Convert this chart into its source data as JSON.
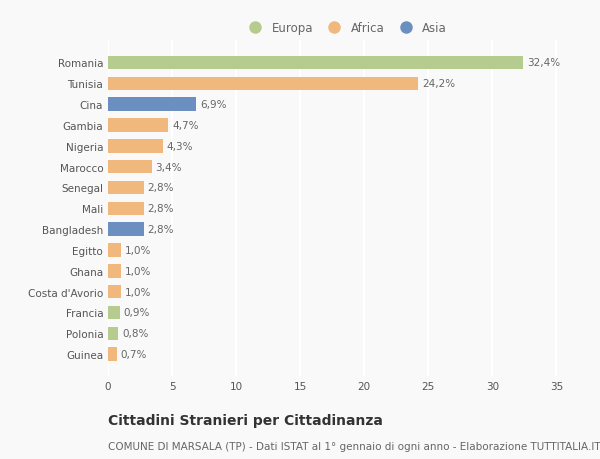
{
  "categories": [
    "Romania",
    "Tunisia",
    "Cina",
    "Gambia",
    "Nigeria",
    "Marocco",
    "Senegal",
    "Mali",
    "Bangladesh",
    "Egitto",
    "Ghana",
    "Costa d'Avorio",
    "Francia",
    "Polonia",
    "Guinea"
  ],
  "values": [
    32.4,
    24.2,
    6.9,
    4.7,
    4.3,
    3.4,
    2.8,
    2.8,
    2.8,
    1.0,
    1.0,
    1.0,
    0.9,
    0.8,
    0.7
  ],
  "labels": [
    "32,4%",
    "24,2%",
    "6,9%",
    "4,7%",
    "4,3%",
    "3,4%",
    "2,8%",
    "2,8%",
    "2,8%",
    "1,0%",
    "1,0%",
    "1,0%",
    "0,9%",
    "0,8%",
    "0,7%"
  ],
  "continents": [
    "Europa",
    "Africa",
    "Asia",
    "Africa",
    "Africa",
    "Africa",
    "Africa",
    "Africa",
    "Asia",
    "Africa",
    "Africa",
    "Africa",
    "Europa",
    "Europa",
    "Africa"
  ],
  "colors": {
    "Europa": "#b5cc8e",
    "Africa": "#f0b87c",
    "Asia": "#6a8fc0"
  },
  "xlim": [
    0,
    37
  ],
  "xticks": [
    0,
    5,
    10,
    15,
    20,
    25,
    30,
    35
  ],
  "title": "Cittadini Stranieri per Cittadinanza",
  "subtitle": "COMUNE DI MARSALA (TP) - Dati ISTAT al 1° gennaio di ogni anno - Elaborazione TUTTITALIA.IT",
  "background_color": "#f9f9f9",
  "bar_height": 0.65,
  "grid_color": "#ffffff",
  "title_fontsize": 10,
  "subtitle_fontsize": 7.5,
  "label_fontsize": 7.5,
  "tick_fontsize": 7.5,
  "legend_fontsize": 8.5
}
